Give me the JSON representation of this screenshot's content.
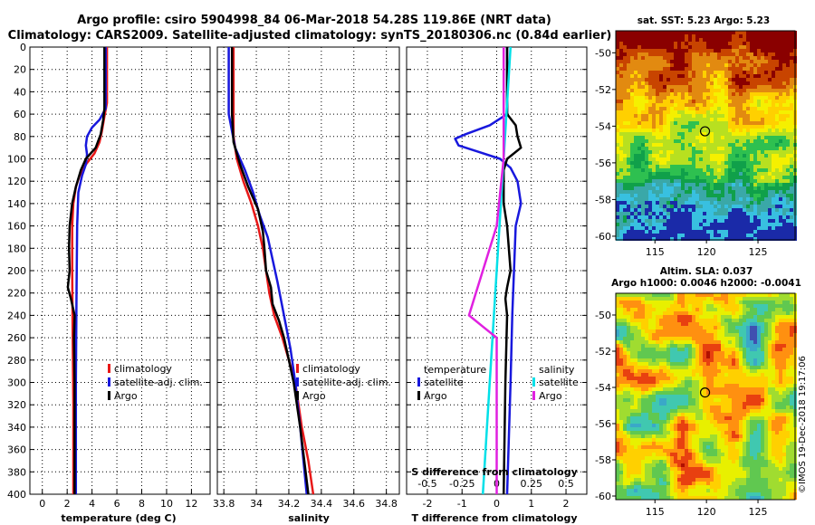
{
  "header": {
    "line1": "Argo profile: csiro 5904998_84 06-Mar-2018 54.28S 119.86E (NRT data)",
    "line2": "Climatology: CARS2009. Satellite-adjusted climatology: synTS_20180306.nc (0.84d earlier)"
  },
  "colors": {
    "climatology": "#e81818",
    "satellite": "#1818dd",
    "argo": "#000000",
    "sal_sat": "#00e0e8",
    "sal_argo": "#e020e0"
  },
  "chart_data": [
    {
      "type": "line",
      "id": "temperature",
      "xlabel": "temperature (deg C)",
      "ylabel": "",
      "xlim": [
        -1,
        13.5
      ],
      "ylim": [
        400,
        0
      ],
      "xticks": [
        "0",
        "2",
        "4",
        "6",
        "8",
        "10",
        "12"
      ],
      "yticks": [
        "0",
        "20",
        "40",
        "60",
        "80",
        "100",
        "120",
        "140",
        "160",
        "180",
        "200",
        "220",
        "240",
        "260",
        "280",
        "300",
        "320",
        "340",
        "360",
        "380",
        "400"
      ],
      "grid": true,
      "legend": [
        "climatology",
        "satellite-adj. clim.",
        "Argo"
      ],
      "series": [
        {
          "name": "climatology",
          "color": "#e81818",
          "depth": [
            0,
            50,
            62,
            75,
            85,
            95,
            105,
            115,
            125,
            140,
            160,
            200,
            260,
            320,
            400
          ],
          "values": [
            5.2,
            5.2,
            5.0,
            4.8,
            4.6,
            4.2,
            3.5,
            3.0,
            2.7,
            2.5,
            2.4,
            2.4,
            2.45,
            2.5,
            2.5
          ]
        },
        {
          "name": "satellite-adj. clim.",
          "color": "#1818dd",
          "depth": [
            0,
            55,
            65,
            72,
            80,
            88,
            96,
            105,
            115,
            130,
            160,
            220,
            300,
            400
          ],
          "values": [
            5.1,
            5.1,
            4.6,
            4.0,
            3.6,
            3.5,
            3.6,
            3.5,
            3.2,
            2.9,
            2.8,
            2.75,
            2.7,
            2.7
          ]
        },
        {
          "name": "Argo",
          "color": "#000000",
          "depth": [
            0,
            55,
            65,
            78,
            90,
            100,
            110,
            125,
            140,
            160,
            180,
            200,
            215,
            225,
            240,
            260,
            300,
            350,
            400
          ],
          "values": [
            5.0,
            5.0,
            4.9,
            4.7,
            4.3,
            3.5,
            3.1,
            2.7,
            2.4,
            2.2,
            2.15,
            2.2,
            2.05,
            2.3,
            2.6,
            2.55,
            2.6,
            2.6,
            2.6
          ]
        }
      ]
    },
    {
      "type": "line",
      "id": "salinity",
      "xlabel": "salinity",
      "ylabel": "",
      "xlim": [
        33.76,
        34.88
      ],
      "ylim": [
        400,
        0
      ],
      "xticks": [
        "33.8",
        "34",
        "34.2",
        "34.4",
        "34.6",
        "34.8"
      ],
      "grid": true,
      "legend": [
        "climatology",
        "satellite-adj. clim.",
        "Argo"
      ],
      "series": [
        {
          "name": "climatology",
          "color": "#e81818",
          "depth": [
            0,
            80,
            100,
            120,
            140,
            160,
            180,
            200,
            220,
            240,
            260,
            280,
            300,
            340,
            370,
            400
          ],
          "values": [
            33.86,
            33.86,
            33.88,
            33.92,
            33.97,
            34.01,
            34.04,
            34.06,
            34.08,
            34.11,
            34.16,
            34.2,
            34.24,
            34.28,
            34.32,
            34.35
          ]
        },
        {
          "name": "satellite-adj. clim.",
          "color": "#1818dd",
          "depth": [
            0,
            60,
            90,
            110,
            130,
            150,
            170,
            190,
            210,
            240,
            270,
            300,
            340,
            400
          ],
          "values": [
            33.83,
            33.83,
            33.87,
            33.93,
            33.98,
            34.02,
            34.07,
            34.1,
            34.13,
            34.17,
            34.21,
            34.24,
            34.27,
            34.31
          ]
        },
        {
          "name": "Argo",
          "color": "#000000",
          "depth": [
            0,
            60,
            85,
            105,
            125,
            145,
            165,
            180,
            200,
            215,
            230,
            245,
            260,
            280,
            300,
            340,
            400
          ],
          "values": [
            33.85,
            33.85,
            33.86,
            33.9,
            33.95,
            34.01,
            34.04,
            34.05,
            34.06,
            34.09,
            34.1,
            34.14,
            34.17,
            34.2,
            34.23,
            34.27,
            34.32
          ]
        }
      ]
    },
    {
      "type": "line",
      "id": "difference",
      "xlabel": "T difference from climatology",
      "xlabel_top": "S difference from climatology",
      "xlim": [
        -2.6,
        2.6
      ],
      "ylim": [
        400,
        0
      ],
      "xticks": [
        "-2",
        "-1",
        "0",
        "1",
        "2"
      ],
      "xticks_top": [
        "-0.5",
        "-0.25",
        "0",
        "0.25",
        "0.5"
      ],
      "grid": true,
      "legend": {
        "temperature_title": "temperature",
        "salinity_title": "salinity",
        "items": [
          "satellite",
          "Argo",
          "satellite",
          "Argo"
        ]
      },
      "series": [
        {
          "name": "T satellite",
          "color": "#1818dd",
          "depth": [
            0,
            60,
            70,
            78,
            82,
            88,
            94,
            100,
            108,
            120,
            140,
            160,
            200,
            240,
            300,
            400
          ],
          "values": [
            0.3,
            0.3,
            -0.2,
            -0.9,
            -1.2,
            -1.1,
            -0.5,
            0.1,
            0.4,
            0.6,
            0.7,
            0.55,
            0.5,
            0.45,
            0.4,
            0.3
          ]
        },
        {
          "name": "T Argo",
          "color": "#000000",
          "depth": [
            0,
            60,
            70,
            80,
            90,
            100,
            110,
            140,
            160,
            200,
            215,
            225,
            240,
            300,
            400
          ],
          "values": [
            0.3,
            0.3,
            0.55,
            0.6,
            0.7,
            0.3,
            0.2,
            0.2,
            0.3,
            0.4,
            0.3,
            0.25,
            0.3,
            0.25,
            0.2
          ]
        },
        {
          "name": "S satellite",
          "color": "#00e0e8",
          "depth": [
            0,
            100,
            200,
            300,
            400
          ],
          "values": [
            0.1,
            0.05,
            0.0,
            -0.05,
            -0.1
          ]
        },
        {
          "name": "S Argo",
          "color": "#e020e0",
          "depth": [
            0,
            100,
            160,
            200,
            220,
            240,
            250,
            260,
            300,
            400
          ],
          "values": [
            0.05,
            0.05,
            0.0,
            -0.1,
            -0.15,
            -0.2,
            -0.1,
            0.0,
            0.0,
            0.0
          ]
        }
      ]
    }
  ],
  "maps": [
    {
      "title": "sat. SST: 5.23 Argo: 5.23",
      "xticks": [
        "115",
        "120",
        "125"
      ],
      "yticks": [
        "-50",
        "-52",
        "-54",
        "-56",
        "-58",
        "-60"
      ]
    },
    {
      "title1": "Altim. SLA: 0.037",
      "title2": "Argo h1000: 0.0046 h2000: -0.0041",
      "xticks": [
        "115",
        "120",
        "125"
      ],
      "yticks": [
        "-50",
        "-52",
        "-54",
        "-56",
        "-58",
        "-60"
      ]
    }
  ],
  "credit": "©IMOS 19-Dec-2018 19:17:06"
}
